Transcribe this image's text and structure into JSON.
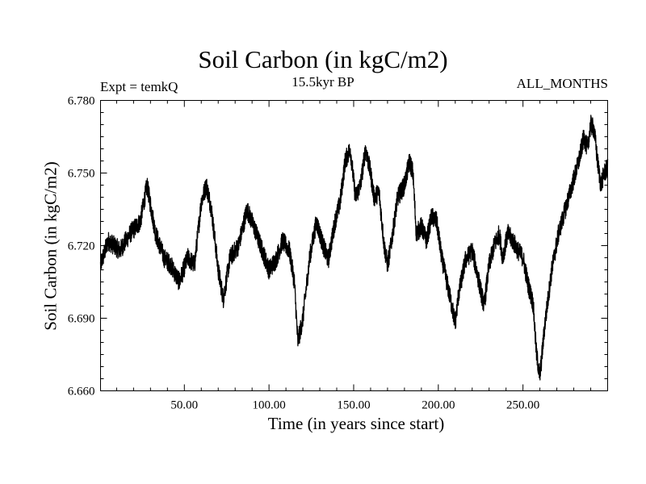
{
  "chart_data": {
    "type": "line",
    "title": "Soil Carbon (in kgC/m2)",
    "subtitle": "15.5kyr BP",
    "experiment_label": "Expt = temkQ",
    "period_label": "ALL_MONTHS",
    "xlabel": "Time (in years since start)",
    "ylabel": "Soil Carbon (in kgC/m2)",
    "xlim": [
      0.5,
      300
    ],
    "ylim": [
      6.66,
      6.78
    ],
    "x_ticks": [
      50,
      100,
      150,
      200,
      250
    ],
    "x_tick_labels": [
      "50.00",
      "100.00",
      "150.00",
      "200.00",
      "250.00"
    ],
    "y_ticks": [
      6.66,
      6.69,
      6.72,
      6.75,
      6.78
    ],
    "y_tick_labels": [
      "6.660",
      "6.690",
      "6.720",
      "6.750",
      "6.780"
    ],
    "series": [
      {
        "name": "Soil Carbon",
        "color": "#000000",
        "noise_amplitude": 0.004,
        "x": [
          0.5,
          5,
          12,
          18,
          24,
          28,
          33,
          38,
          42,
          47,
          52,
          56,
          60,
          63,
          66,
          70,
          73,
          77,
          82,
          87,
          91,
          95,
          100,
          104,
          108,
          112,
          115,
          117,
          120,
          124,
          128,
          132,
          135,
          139,
          142,
          145,
          148,
          151,
          154,
          157,
          160,
          162,
          165,
          168,
          170,
          172,
          176,
          180,
          183,
          185,
          187,
          190,
          193,
          196,
          199,
          202,
          205,
          208,
          210,
          212,
          216,
          220,
          224,
          227,
          230,
          233,
          236,
          238,
          241,
          244,
          247,
          250,
          253,
          256,
          258,
          260,
          263,
          267,
          271,
          275,
          279,
          283,
          286,
          288,
          290,
          292,
          294,
          296,
          298,
          300
        ],
        "y": [
          6.712,
          6.722,
          6.718,
          6.725,
          6.73,
          6.745,
          6.725,
          6.715,
          6.712,
          6.705,
          6.715,
          6.712,
          6.738,
          6.745,
          6.735,
          6.71,
          6.698,
          6.715,
          6.72,
          6.735,
          6.728,
          6.72,
          6.71,
          6.714,
          6.722,
          6.718,
          6.705,
          6.68,
          6.69,
          6.715,
          6.73,
          6.72,
          6.714,
          6.73,
          6.738,
          6.755,
          6.76,
          6.74,
          6.745,
          6.76,
          6.75,
          6.74,
          6.742,
          6.72,
          6.712,
          6.72,
          6.74,
          6.745,
          6.755,
          6.75,
          6.725,
          6.728,
          6.722,
          6.732,
          6.73,
          6.715,
          6.705,
          6.695,
          6.688,
          6.7,
          6.714,
          6.718,
          6.705,
          6.695,
          6.712,
          6.72,
          6.725,
          6.715,
          6.725,
          6.722,
          6.718,
          6.715,
          6.704,
          6.696,
          6.675,
          6.666,
          6.688,
          6.71,
          6.725,
          6.735,
          6.745,
          6.755,
          6.765,
          6.76,
          6.77,
          6.768,
          6.755,
          6.745,
          6.75,
          6.752
        ]
      }
    ]
  }
}
